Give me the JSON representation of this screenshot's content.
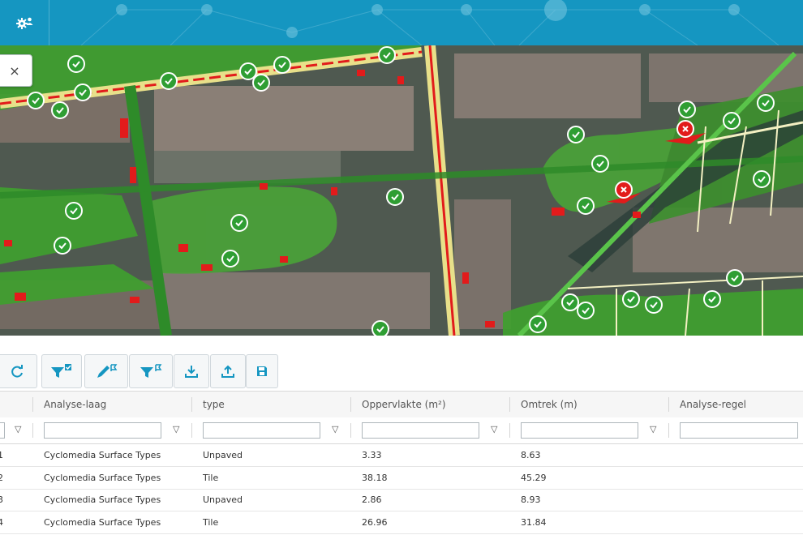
{
  "header": {
    "settings_icon": "gear-user-icon",
    "color": "#1596c1"
  },
  "map": {
    "close_label": "×",
    "colors": {
      "vegetation": "#3fa02f",
      "road": "#e8e08a",
      "damage": "#e21b1b",
      "check": "#2f9e33"
    }
  },
  "toolbar": {
    "buttons": [
      {
        "name": "refresh",
        "icon": "refresh-icon"
      },
      {
        "name": "filter-checked",
        "icon": "filter-check-icon"
      },
      {
        "name": "edit-flag",
        "icon": "pencil-flag-icon"
      },
      {
        "name": "filter-flag",
        "icon": "filter-flag-icon"
      },
      {
        "name": "download",
        "icon": "download-icon"
      },
      {
        "name": "upload",
        "icon": "upload-icon"
      },
      {
        "name": "save",
        "icon": "save-icon"
      }
    ]
  },
  "table": {
    "columns": [
      "Analyse-laag",
      "type",
      "Oppervlakte (m²)",
      "Omtrek (m)",
      "Analyse-regel"
    ],
    "filter_icon": "▽",
    "rows": [
      {
        "id": "1",
        "laag": "Cyclomedia Surface Types",
        "type": "Unpaved",
        "opp": "3.33",
        "omtrek": "8.63",
        "regel": ""
      },
      {
        "id": "2",
        "laag": "Cyclomedia Surface Types",
        "type": "Tile",
        "opp": "38.18",
        "omtrek": "45.29",
        "regel": ""
      },
      {
        "id": "3",
        "laag": "Cyclomedia Surface Types",
        "type": "Unpaved",
        "opp": "2.86",
        "omtrek": "8.93",
        "regel": ""
      },
      {
        "id": "4",
        "laag": "Cyclomedia Surface Types",
        "type": "Tile",
        "opp": "26.96",
        "omtrek": "31.84",
        "regel": ""
      }
    ]
  }
}
